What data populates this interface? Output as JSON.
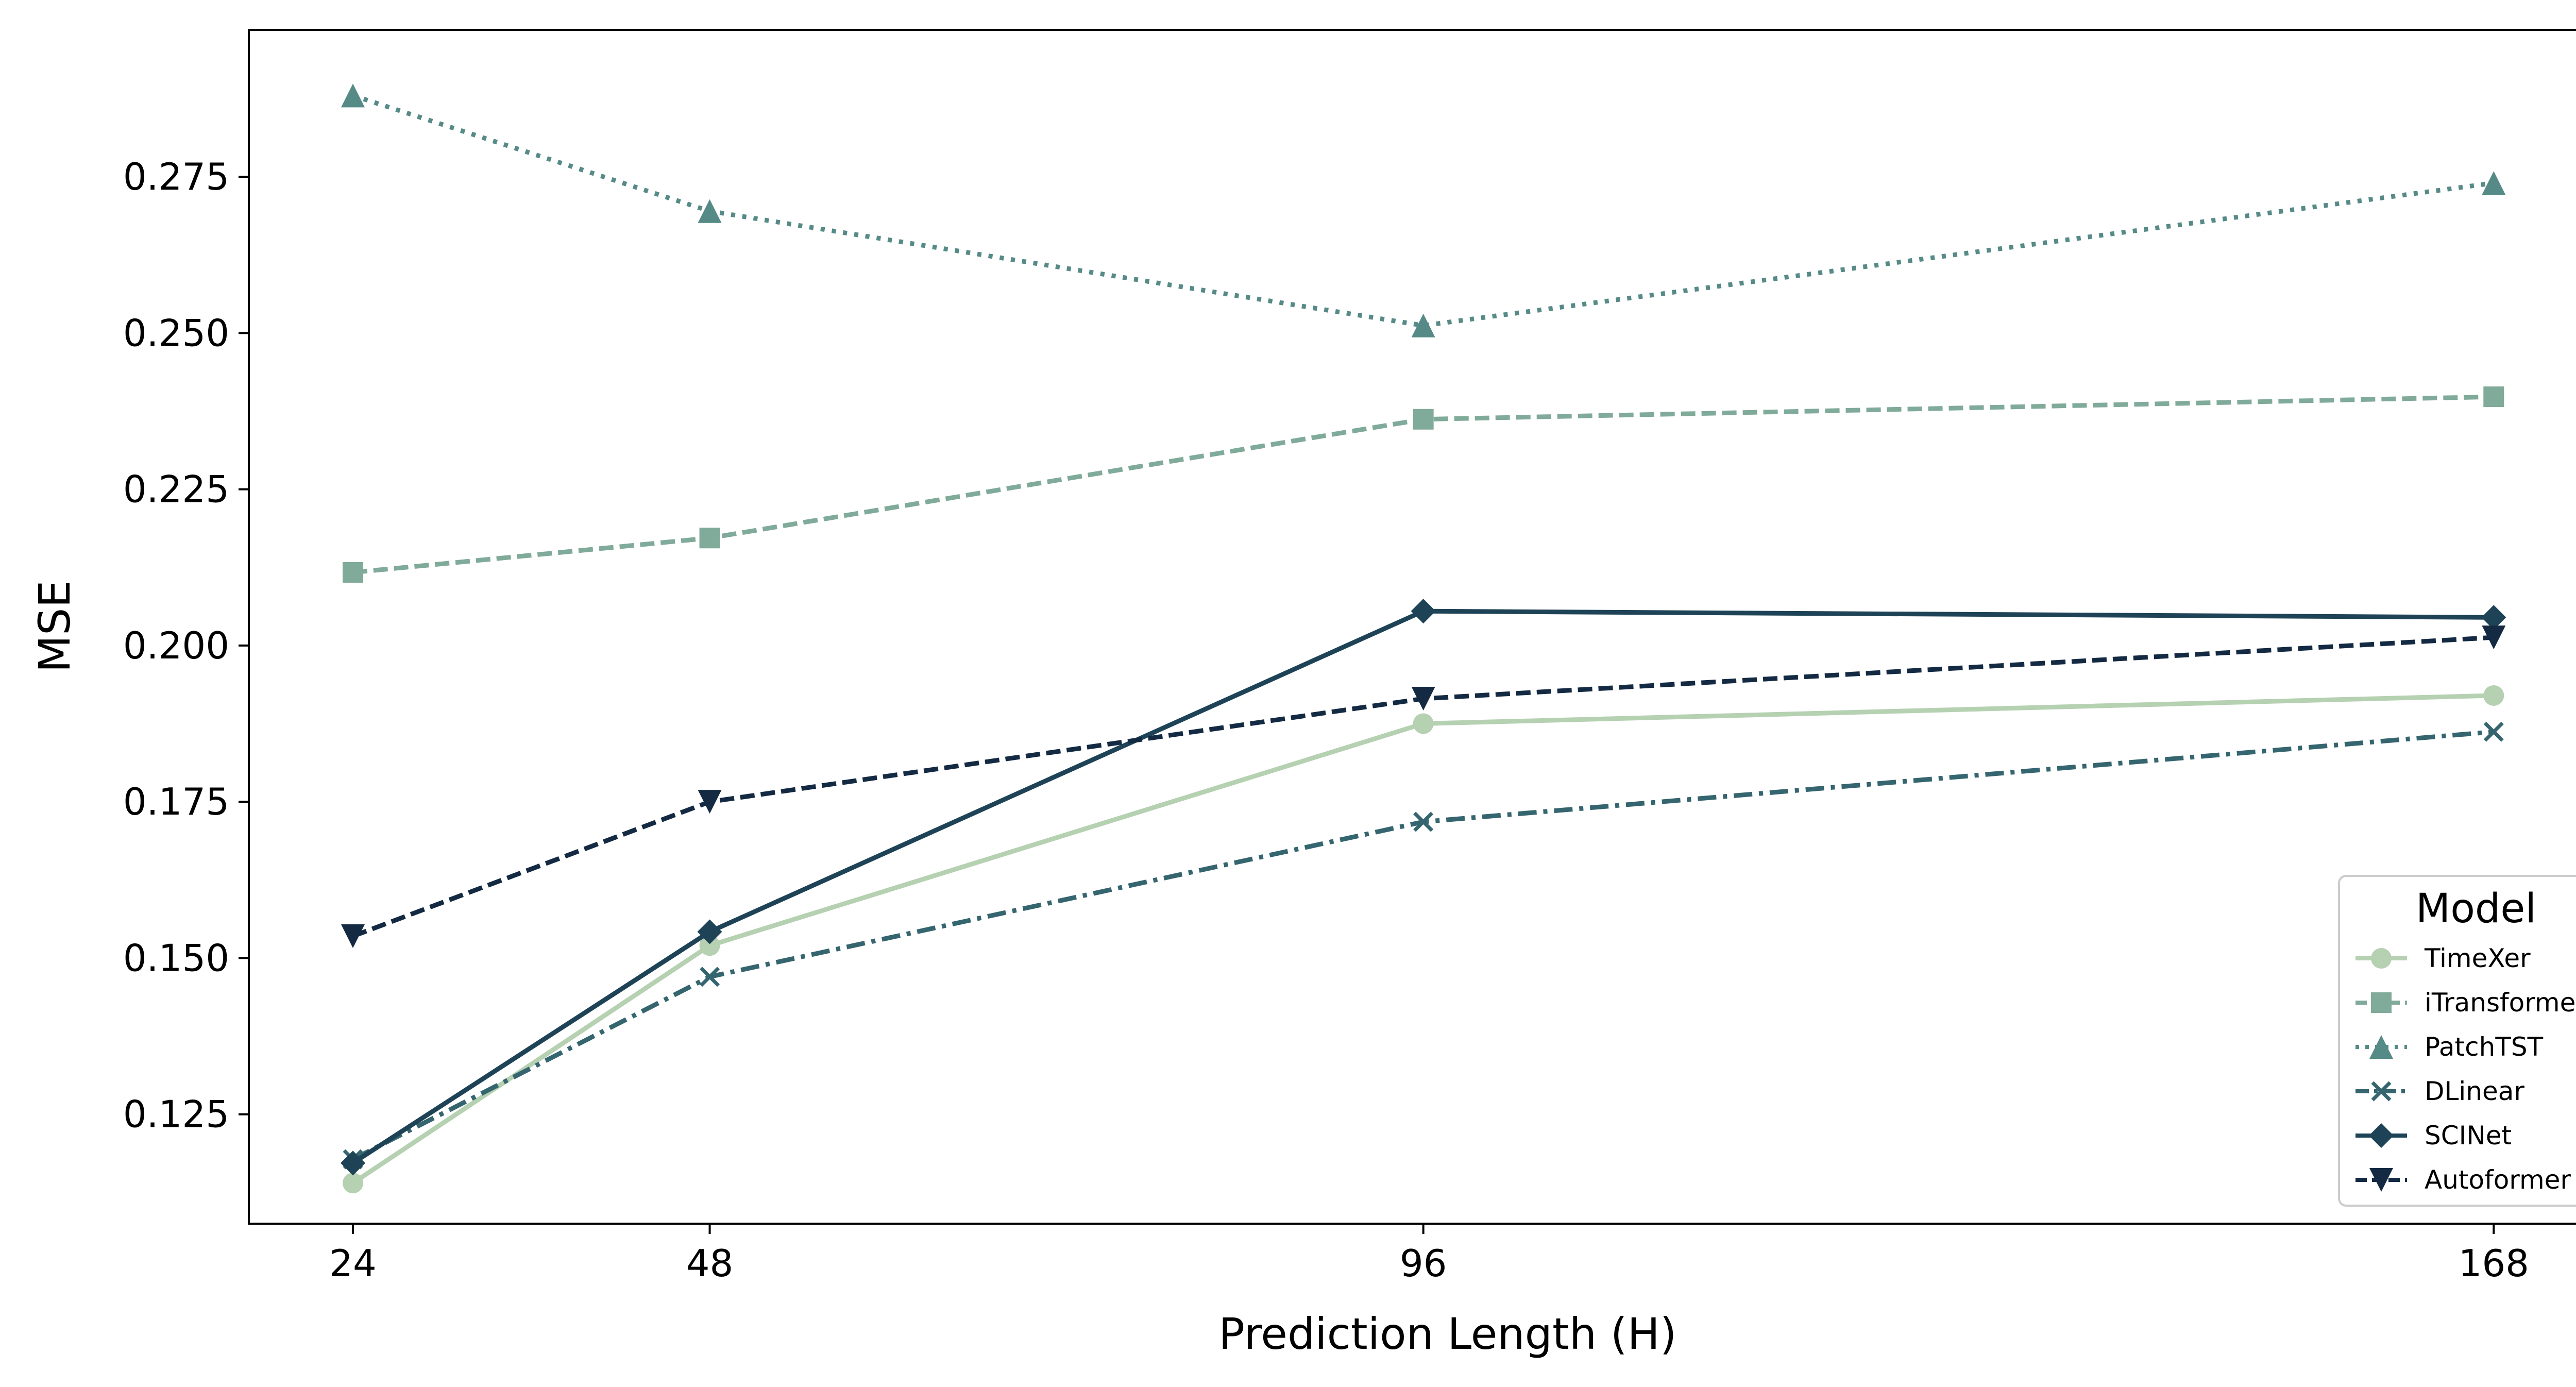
{
  "chart_data": {
    "type": "line",
    "xlabel": "Prediction Length (H)",
    "ylabel": "MSE",
    "x": [
      24,
      48,
      96,
      168
    ],
    "x_tick_labels": [
      "24",
      "48",
      "96",
      "168"
    ],
    "xlim": [
      17,
      177
    ],
    "ylim": [
      0.1075,
      0.2985
    ],
    "y_ticks": [
      0.125,
      0.15,
      0.175,
      0.2,
      0.225,
      0.25,
      0.275
    ],
    "y_tick_labels": [
      "0.125",
      "0.150",
      "0.175",
      "0.200",
      "0.225",
      "0.250",
      "0.275"
    ],
    "grid": false,
    "legend": {
      "title": "Model",
      "position": "lower right"
    },
    "series": [
      {
        "name": "TimeXer",
        "values": [
          0.114,
          0.152,
          0.1875,
          0.192
        ],
        "color": "#b5d1b1",
        "marker": "circle",
        "dash": "solid"
      },
      {
        "name": "iTransformer",
        "values": [
          0.2117,
          0.2172,
          0.2362,
          0.2398
        ],
        "color": "#80aa9a",
        "marker": "square",
        "dash": "dashed"
      },
      {
        "name": "PatchTST",
        "values": [
          0.288,
          0.2695,
          0.2512,
          0.274
        ],
        "color": "#568a86",
        "marker": "triangle-up",
        "dash": "dotted"
      },
      {
        "name": "DLinear",
        "values": [
          0.1178,
          0.147,
          0.1718,
          0.1862
        ],
        "color": "#35656f",
        "marker": "x",
        "dash": "dashdot"
      },
      {
        "name": "SCINet",
        "values": [
          0.1172,
          0.1542,
          0.2055,
          0.2045
        ],
        "color": "#1e4356",
        "marker": "diamond",
        "dash": "solid"
      },
      {
        "name": "Autoformer",
        "values": [
          0.1535,
          0.175,
          0.1915,
          0.2013
        ],
        "color": "#132a42",
        "marker": "triangle-down",
        "dash": "dashed"
      }
    ]
  }
}
